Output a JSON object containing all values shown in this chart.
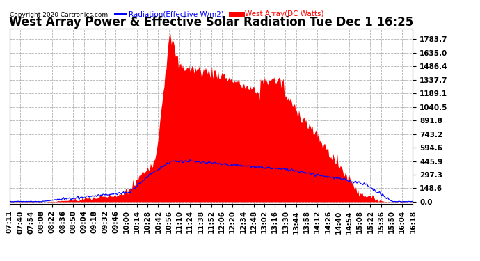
{
  "title": "West Array Power & Effective Solar Radiation Tue Dec 1 16:25",
  "copyright": "Copyright 2020 Cartronics.com",
  "legend_radiation": "Radiation(Effective W/m2)",
  "legend_west": "West Array(DC Watts)",
  "yticks": [
    0.0,
    148.6,
    297.3,
    445.9,
    594.6,
    743.2,
    891.8,
    1040.5,
    1189.1,
    1337.7,
    1486.4,
    1635.0,
    1783.7
  ],
  "ymax": 1900,
  "ymin": -20,
  "background_color": "#ffffff",
  "plot_bg_color": "#ffffff",
  "grid_color": "#aaaaaa",
  "fill_color": "#ff0000",
  "line_color_radiation": "#0000ff",
  "line_color_west": "#ff0000",
  "title_fontsize": 12,
  "tick_fontsize": 7.5,
  "xtick_labels": [
    "07:11",
    "07:40",
    "07:54",
    "08:08",
    "08:22",
    "08:36",
    "08:50",
    "09:04",
    "09:18",
    "09:32",
    "09:46",
    "10:00",
    "10:14",
    "10:28",
    "10:42",
    "10:56",
    "11:10",
    "11:24",
    "11:38",
    "11:52",
    "12:06",
    "12:20",
    "12:34",
    "12:48",
    "13:02",
    "13:16",
    "13:30",
    "13:44",
    "13:58",
    "14:12",
    "14:26",
    "14:40",
    "14:54",
    "15:08",
    "15:22",
    "15:36",
    "15:50",
    "16:04",
    "16:18"
  ],
  "n_points": 390
}
